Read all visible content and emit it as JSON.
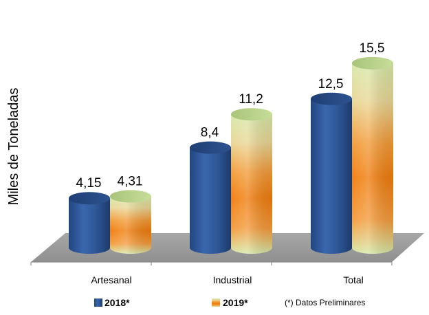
{
  "chart_data": {
    "type": "bar",
    "ylabel": "Miles de Toneladas",
    "categories": [
      "Artesanal",
      "Industrial",
      "Total"
    ],
    "series": [
      {
        "name": "2018*",
        "values": [
          4.15,
          8.4,
          12.5
        ],
        "labels": [
          "4,15",
          "8,4",
          "12,5"
        ],
        "color": "#2e5597"
      },
      {
        "name": "2019*",
        "values": [
          4.31,
          11.2,
          15.5
        ],
        "labels": [
          "4,31",
          "11,2",
          "15,5"
        ],
        "color": "#f07d10",
        "color_secondary": "#cfe5a0"
      }
    ],
    "ylim": [
      0,
      16
    ],
    "grid": false,
    "legend": {
      "position": "bottom",
      "note": "(*) Datos Preliminares"
    }
  }
}
